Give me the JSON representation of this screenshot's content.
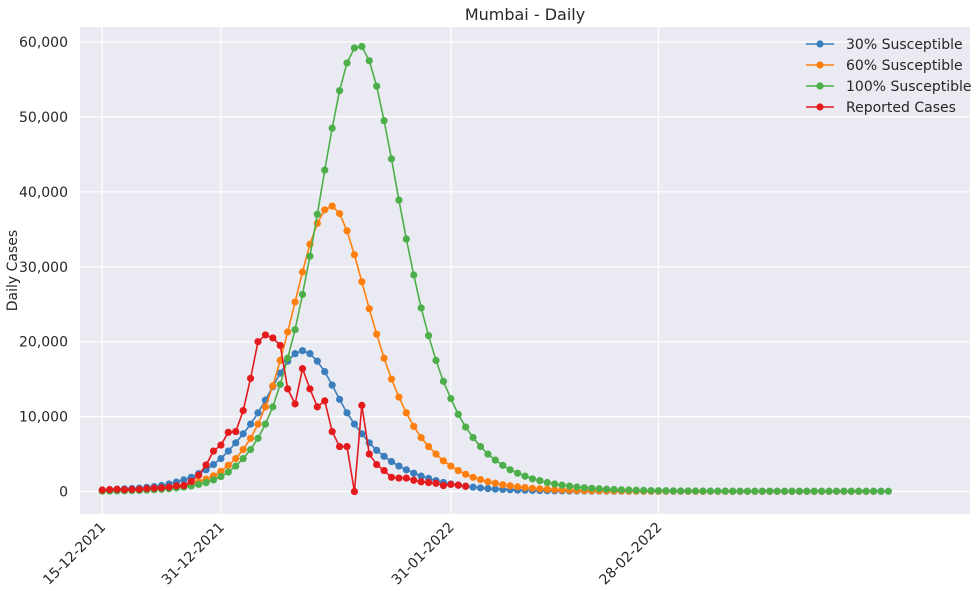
{
  "chart_data": {
    "type": "line",
    "title": "Mumbai - Daily",
    "xlabel": "",
    "ylabel": "Daily Cases",
    "x_start": "15-12-2021",
    "x_end": "06-04-2022",
    "xlim": [
      "12-12-2021",
      "11-04-2022"
    ],
    "ylim": [
      -3000,
      62000
    ],
    "y_ticks": [
      0,
      10000,
      20000,
      30000,
      40000,
      50000,
      60000
    ],
    "y_tick_labels": [
      "0",
      "10,000",
      "20,000",
      "30,000",
      "40,000",
      "50,000",
      "60,000"
    ],
    "x_ticks": [
      "15-12-2021",
      "31-12-2021",
      "31-01-2022",
      "28-02-2022"
    ],
    "x_tick_labels": [
      "15-12-2021",
      "31-12-2021",
      "31-01-2022",
      "28-02-2022"
    ],
    "grid": true,
    "legend_position": "top-right",
    "series": [
      {
        "name": "30% Susceptible",
        "color": "#3a7ebd",
        "start": "15-12-2021",
        "values": [
          200,
          250,
          300,
          350,
          400,
          450,
          550,
          650,
          800,
          1000,
          1250,
          1550,
          1900,
          2400,
          2900,
          3600,
          4400,
          5400,
          6500,
          7700,
          9000,
          10500,
          12200,
          14000,
          15800,
          17400,
          18400,
          18800,
          18400,
          17400,
          16000,
          14200,
          12300,
          10500,
          9000,
          7700,
          6500,
          5500,
          4700,
          4000,
          3400,
          2900,
          2450,
          2050,
          1750,
          1450,
          1200,
          1000,
          850,
          700,
          580,
          480,
          400,
          330,
          280,
          240,
          200,
          170,
          150,
          130,
          110,
          100,
          90,
          80,
          75,
          70,
          65,
          60,
          55,
          50,
          50,
          45,
          45,
          40,
          40,
          40,
          40,
          35,
          35,
          35,
          35,
          35,
          35,
          35,
          35,
          30,
          30,
          30,
          30,
          30,
          30,
          30,
          30,
          30,
          30,
          30,
          30,
          30,
          30,
          30,
          30,
          30,
          30,
          30,
          30,
          30
        ]
      },
      {
        "name": "60% Susceptible",
        "color": "#ff7f0e",
        "start": "15-12-2021",
        "values": [
          80,
          100,
          120,
          150,
          180,
          220,
          270,
          330,
          420,
          520,
          650,
          800,
          1000,
          1300,
          1650,
          2100,
          2700,
          3500,
          4400,
          5600,
          7100,
          9000,
          11300,
          14100,
          17500,
          21300,
          25300,
          29300,
          33000,
          35800,
          37600,
          38100,
          37100,
          34800,
          31600,
          28000,
          24400,
          21000,
          17800,
          15000,
          12600,
          10500,
          8700,
          7200,
          6000,
          5000,
          4100,
          3400,
          2800,
          2300,
          1900,
          1600,
          1300,
          1100,
          900,
          750,
          620,
          520,
          430,
          360,
          300,
          250,
          210,
          180,
          150,
          130,
          110,
          100,
          90,
          80,
          70,
          60,
          55,
          50,
          45,
          40,
          35,
          35,
          30,
          30,
          25,
          25,
          25,
          25,
          20,
          20,
          20,
          20,
          20,
          20,
          20,
          20,
          20,
          20,
          20,
          20,
          20,
          20,
          20,
          20,
          20,
          20,
          20,
          20,
          20
        ]
      },
      {
        "name": "100% Susceptible",
        "color": "#4daf4a",
        "start": "15-12-2021",
        "values": [
          50,
          60,
          80,
          100,
          120,
          150,
          190,
          240,
          300,
          380,
          480,
          600,
          750,
          950,
          1200,
          1550,
          2000,
          2600,
          3400,
          4400,
          5600,
          7100,
          9000,
          11300,
          14300,
          17800,
          21600,
          26300,
          31400,
          37000,
          42900,
          48500,
          53500,
          57200,
          59200,
          59400,
          57500,
          54100,
          49500,
          44400,
          38900,
          33700,
          28900,
          24500,
          20800,
          17500,
          14700,
          12400,
          10300,
          8600,
          7200,
          6000,
          5000,
          4200,
          3500,
          2900,
          2450,
          2050,
          1700,
          1450,
          1200,
          1000,
          850,
          720,
          600,
          510,
          430,
          370,
          310,
          270,
          230,
          200,
          170,
          150,
          130,
          110,
          100,
          90,
          80,
          75,
          70,
          65,
          60,
          55,
          50,
          50,
          45,
          45,
          40,
          40,
          40,
          40,
          35,
          35,
          35,
          35,
          35,
          35,
          35,
          35,
          35,
          35,
          35,
          35,
          35,
          35,
          35
        ]
      },
      {
        "name": "Reported Cases",
        "color": "#e41a1c",
        "start": "15-12-2021",
        "values": [
          200,
          250,
          300,
          250,
          280,
          300,
          400,
          450,
          500,
          600,
          750,
          800,
          1350,
          2200,
          3550,
          5400,
          6200,
          7900,
          8000,
          10800,
          15100,
          20000,
          20900,
          20500,
          19500,
          13700,
          11700,
          16400,
          13700,
          11300,
          12100,
          8000,
          6000,
          6000,
          0,
          11500,
          5000,
          3600,
          2800,
          1900,
          1800,
          1800,
          1500,
          1300,
          1200,
          1100,
          800,
          950,
          850,
          700
        ]
      }
    ]
  }
}
